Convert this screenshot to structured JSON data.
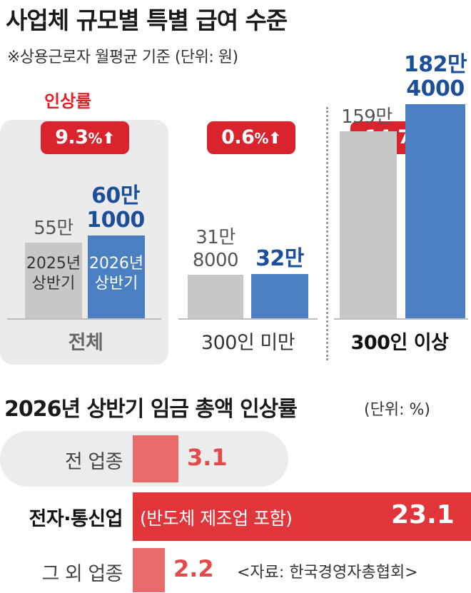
{
  "chart_data": [
    {
      "type": "bar",
      "title": "사업체 규모별 특별 급여 수준",
      "subtitle": "※상용근로자 월평균 기준 (단위: 원)",
      "rate_label": "인상률",
      "categories": [
        "전체",
        "300인 미만",
        "300인 이상"
      ],
      "series": [
        {
          "name": "2025년 상반기",
          "values": [
            550000,
            318000,
            1590000
          ],
          "labels": [
            "55만",
            "31만 8000",
            "159만"
          ]
        },
        {
          "name": "2026년 상반기",
          "values": [
            601000,
            320000,
            1824000
          ],
          "labels": [
            "60만 1000",
            "32만",
            "182만 4000"
          ]
        }
      ],
      "increase_rates": [
        "9.3",
        "0.6",
        "14.7"
      ],
      "rate_unit": "%",
      "series_label_lines": [
        [
          "2025년",
          "상반기"
        ],
        [
          "2026년",
          "상반기"
        ]
      ],
      "label_lines": [
        [
          [
            "55만"
          ],
          [
            "60만",
            "1000"
          ]
        ],
        [
          [
            "31만",
            "8000"
          ],
          [
            "32만"
          ]
        ],
        [
          [
            "159만"
          ],
          [
            "182만",
            "4000"
          ]
        ]
      ]
    },
    {
      "type": "bar",
      "orientation": "horizontal",
      "title": "2026년 상반기 임금 총액 인상률",
      "unit": "(단위: %)",
      "categories": [
        "전 업종",
        "전자·통신업",
        "그 외 업종"
      ],
      "values": [
        3.1,
        23.1,
        2.2
      ],
      "value_labels": [
        "3.1",
        "23.1",
        "2.2"
      ],
      "note": "(반도체 제조업 포함)",
      "source": "<자료: 한국경영자총협회>"
    }
  ]
}
